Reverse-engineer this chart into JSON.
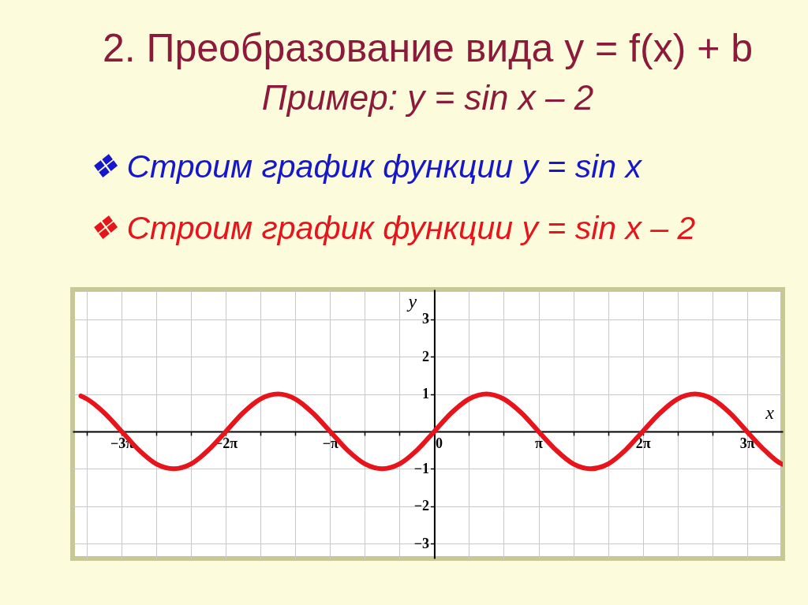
{
  "chart_data": {
    "type": "line",
    "title": "2. Преобразование вида y = f(x) + b",
    "subtitle": "Пример:    y = sin x – 2",
    "annotations": [
      "❖ Строим график функции  y = sin x",
      "❖ Строим график функции  y = sin x – 2"
    ],
    "xlabel": "x",
    "ylabel": "y",
    "x": [
      -10.65,
      -10.47,
      -9.95,
      -9.42,
      -8.9,
      -8.38,
      -7.85,
      -7.33,
      -6.81,
      -6.28,
      -5.76,
      -5.24,
      -4.71,
      -4.19,
      -3.67,
      -3.14,
      -2.62,
      -2.09,
      -1.57,
      -1.05,
      -0.52,
      0,
      0.52,
      1.05,
      1.57,
      2.09,
      2.62,
      3.14,
      3.67,
      4.19,
      4.71,
      5.24,
      5.76,
      6.28,
      6.81,
      7.33,
      7.85,
      8.38,
      8.9,
      9.42,
      9.95,
      10.47,
      10.5
    ],
    "series": [
      {
        "color": "#e8141c",
        "values": [
          0.95,
          0.87,
          0.5,
          0,
          -0.5,
          -0.87,
          -1,
          -0.87,
          -0.5,
          0,
          0.5,
          0.87,
          1,
          0.87,
          0.5,
          0,
          -0.5,
          -0.87,
          -1,
          -0.87,
          -0.5,
          0,
          0.5,
          0.87,
          1,
          0.87,
          0.5,
          0,
          -0.5,
          -0.87,
          -1,
          -0.87,
          -0.5,
          0,
          0.5,
          0.87,
          1,
          0.87,
          0.5,
          0,
          -0.5,
          -0.87,
          -0.88
        ]
      }
    ],
    "xlim": [
      -10.9,
      10.5
    ],
    "ylim": [
      -3.4,
      3.8
    ],
    "xticks": [
      {
        "value": -10.472,
        "label": null
      },
      {
        "value": -9.4248,
        "label": "−3π"
      },
      {
        "value": -8.3776,
        "label": null
      },
      {
        "value": -7.3304,
        "label": null
      },
      {
        "value": -6.2832,
        "label": "−2π"
      },
      {
        "value": -5.236,
        "label": null
      },
      {
        "value": -4.1888,
        "label": null
      },
      {
        "value": -3.1416,
        "label": "−π"
      },
      {
        "value": -2.0944,
        "label": null
      },
      {
        "value": -1.0472,
        "label": null
      },
      0,
      {
        "value": 1.0472,
        "label": null
      },
      {
        "value": 2.0944,
        "label": null
      },
      {
        "value": 3.1416,
        "label": "π"
      },
      {
        "value": 4.1888,
        "label": null
      },
      {
        "value": 5.236,
        "label": null
      },
      {
        "value": 6.2832,
        "label": "2π"
      },
      {
        "value": 7.3304,
        "label": null
      },
      {
        "value": 8.3776,
        "label": null
      },
      {
        "value": 9.4248,
        "label": "3π"
      }
    ],
    "yticks": [
      -3,
      -2,
      -1,
      1,
      2,
      3
    ],
    "grid": true,
    "line_style": "solid"
  }
}
